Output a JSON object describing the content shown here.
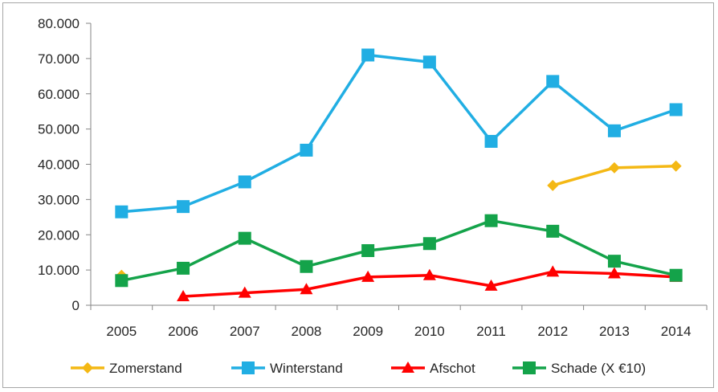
{
  "chart_data": {
    "type": "line",
    "title": "",
    "xlabel": "",
    "ylabel": "",
    "x": [
      "2005",
      "2006",
      "2007",
      "2008",
      "2009",
      "2010",
      "2011",
      "2012",
      "2013",
      "2014"
    ],
    "ylim": [
      0,
      80000
    ],
    "yticks": [
      0,
      10000,
      20000,
      30000,
      40000,
      50000,
      60000,
      70000,
      80000
    ],
    "ytick_labels": [
      "0",
      "10.000",
      "20.000",
      "30.000",
      "40.000",
      "50.000",
      "60.000",
      "70.000",
      "80.000"
    ],
    "grid": false,
    "legend_position": "bottom",
    "series": [
      {
        "name": "Zomerstand",
        "color": "#f4b814",
        "marker": "diamond",
        "values": [
          8500,
          null,
          null,
          null,
          null,
          null,
          null,
          34000,
          39000,
          39500
        ]
      },
      {
        "name": "Winterstand",
        "color": "#21aee3",
        "marker": "square",
        "values": [
          26500,
          28000,
          35000,
          44000,
          71000,
          69000,
          46500,
          63500,
          49500,
          55500
        ]
      },
      {
        "name": "Afschot",
        "color": "#ff0000",
        "marker": "triangle",
        "values": [
          null,
          2500,
          3500,
          4500,
          8000,
          8500,
          5500,
          9500,
          9000,
          8000
        ]
      },
      {
        "name": "Schade (X €10)",
        "color": "#14a34a",
        "marker": "square",
        "values": [
          7000,
          10500,
          19000,
          11000,
          15500,
          17500,
          24000,
          21000,
          12500,
          8500
        ]
      }
    ]
  }
}
